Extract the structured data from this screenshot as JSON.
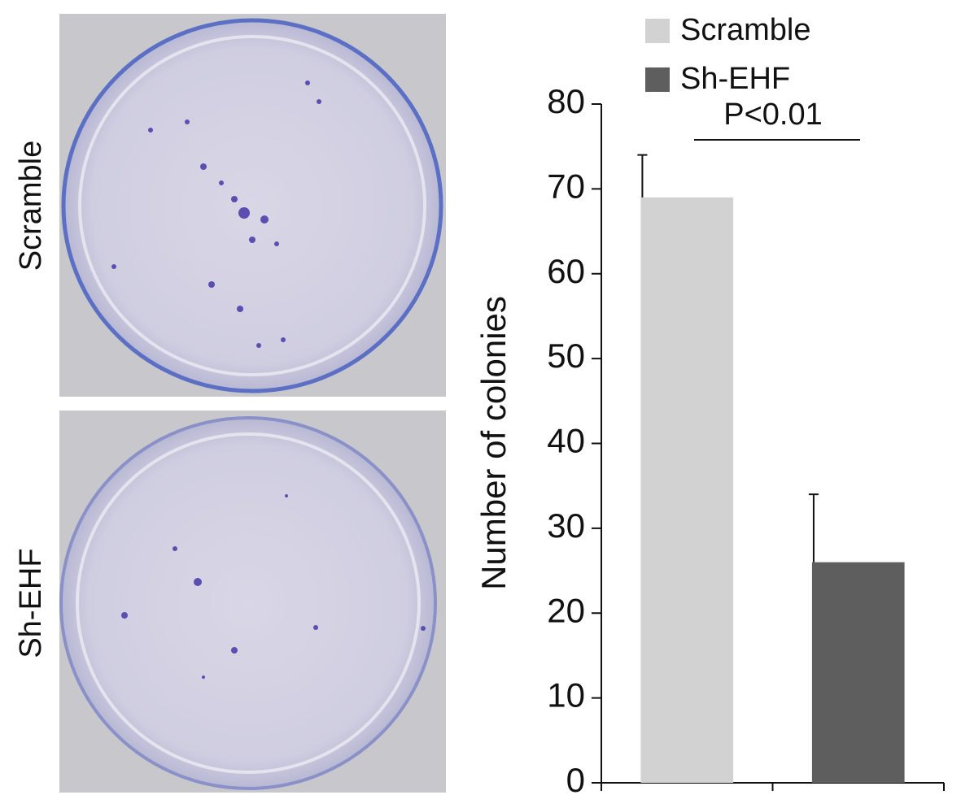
{
  "chart_data": {
    "type": "bar",
    "panel_labels": [
      "Scramble",
      "Sh-EHF"
    ],
    "ylabel": "Number of colonies",
    "annotation": "P<0.01",
    "categories": [
      null,
      null
    ],
    "series": [
      {
        "name": "Scramble",
        "color": "#d2d2d2",
        "values": [
          69,
          null
        ],
        "errors": [
          5,
          null
        ]
      },
      {
        "name": "Sh-EHF",
        "color": "#5e5e5e",
        "values": [
          null,
          26
        ],
        "errors": [
          null,
          8
        ]
      }
    ],
    "ylim": [
      0,
      80
    ],
    "yticks": [
      0,
      10,
      20,
      30,
      40,
      50,
      60,
      70,
      80
    ]
  }
}
